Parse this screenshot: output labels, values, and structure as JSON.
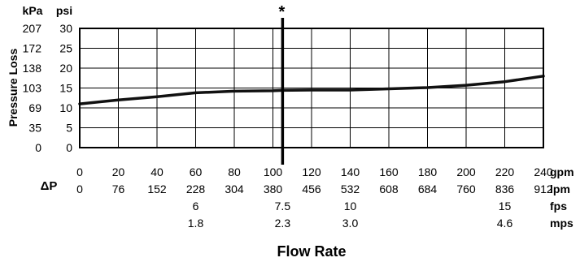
{
  "chart_data": {
    "type": "line",
    "title": "",
    "xlabel": "Flow Rate",
    "ylabel": "Pressure Loss",
    "unit_kpa": "kPa",
    "unit_psi": "psi",
    "delta_p_label": "ΔP",
    "marker_symbol": "*",
    "marker_x_gpm": 105,
    "xlim_gpm": [
      0,
      240
    ],
    "ylim_psi": [
      0,
      30
    ],
    "grid": true,
    "psi_ticks": [
      "0",
      "5",
      "10",
      "15",
      "20",
      "25",
      "30"
    ],
    "kpa_ticks": [
      "0",
      "35",
      "69",
      "103",
      "138",
      "172",
      "207"
    ],
    "x_scales": [
      {
        "unit": "gpm",
        "ticks": [
          {
            "v": 0,
            "label": "0"
          },
          {
            "v": 20,
            "label": "20"
          },
          {
            "v": 40,
            "label": "40"
          },
          {
            "v": 60,
            "label": "60"
          },
          {
            "v": 80,
            "label": "80"
          },
          {
            "v": 100,
            "label": "100"
          },
          {
            "v": 120,
            "label": "120"
          },
          {
            "v": 140,
            "label": "140"
          },
          {
            "v": 160,
            "label": "160"
          },
          {
            "v": 180,
            "label": "180"
          },
          {
            "v": 200,
            "label": "200"
          },
          {
            "v": 220,
            "label": "220"
          },
          {
            "v": 240,
            "label": "240"
          }
        ]
      },
      {
        "unit": "lpm",
        "ticks": [
          {
            "v": 0,
            "label": "0"
          },
          {
            "v": 20,
            "label": "76"
          },
          {
            "v": 40,
            "label": "152"
          },
          {
            "v": 60,
            "label": "228"
          },
          {
            "v": 80,
            "label": "304"
          },
          {
            "v": 100,
            "label": "380"
          },
          {
            "v": 120,
            "label": "456"
          },
          {
            "v": 140,
            "label": "532"
          },
          {
            "v": 160,
            "label": "608"
          },
          {
            "v": 180,
            "label": "684"
          },
          {
            "v": 200,
            "label": "760"
          },
          {
            "v": 220,
            "label": "836"
          },
          {
            "v": 240,
            "label": "912"
          }
        ]
      },
      {
        "unit": "fps",
        "ticks": [
          {
            "v": 60,
            "label": "6"
          },
          {
            "v": 105,
            "label": "7.5"
          },
          {
            "v": 140,
            "label": "10"
          },
          {
            "v": 220,
            "label": "15"
          }
        ]
      },
      {
        "unit": "mps",
        "ticks": [
          {
            "v": 60,
            "label": "1.8"
          },
          {
            "v": 105,
            "label": "2.3"
          },
          {
            "v": 140,
            "label": "3.0"
          },
          {
            "v": 220,
            "label": "4.6"
          }
        ]
      }
    ],
    "series": [
      {
        "x": [
          0,
          20,
          40,
          60,
          80,
          100,
          105,
          120,
          140,
          160,
          180,
          200,
          220,
          240
        ],
        "y": [
          11.0,
          12.0,
          12.8,
          13.8,
          14.2,
          14.3,
          14.4,
          14.5,
          14.5,
          14.8,
          15.1,
          15.7,
          16.6,
          18.0
        ]
      }
    ]
  }
}
